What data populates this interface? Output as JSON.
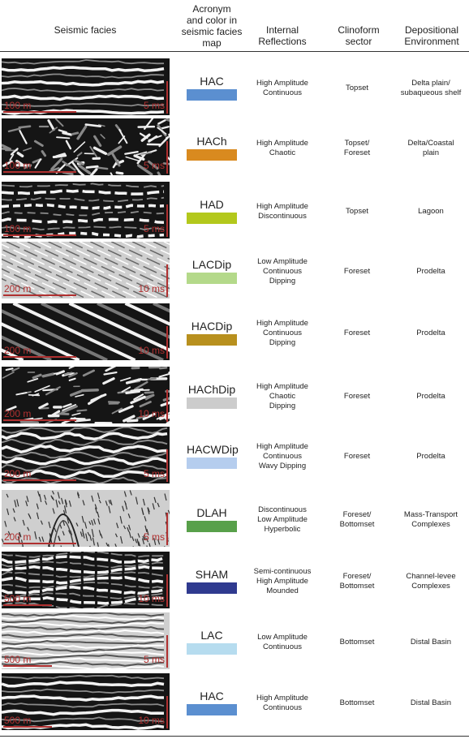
{
  "headers": {
    "facies": "Seismic facies",
    "acronym": [
      "Acronym",
      "and color in",
      "seismic facies",
      "map"
    ],
    "internal": [
      "Internal",
      "Reflections"
    ],
    "sector": [
      "Clinoform",
      "sector"
    ],
    "environment": [
      "Depositional",
      "Environment"
    ]
  },
  "rows": [
    {
      "acronym": "HAC",
      "color": "#5b8fd0",
      "internal": [
        "High Amplitude",
        "Continuous"
      ],
      "sector": [
        "Topset"
      ],
      "environment": [
        "Delta plain/",
        "subaqueous shelf"
      ],
      "scale_h": "100 m",
      "scale_v": "5 ms",
      "texture": "continuous"
    },
    {
      "acronym": "HACh",
      "color": "#d98a1f",
      "internal": [
        "High Amplitude",
        "Chaotic"
      ],
      "sector": [
        "Topset/",
        "Foreset"
      ],
      "environment": [
        "Delta/Coastal",
        "plain"
      ],
      "scale_h": "100 m",
      "scale_v": "5 ms",
      "texture": "chaotic"
    },
    {
      "acronym": "HAD",
      "color": "#b3c81c",
      "internal": [
        "High Amplitude",
        "Discontinuous"
      ],
      "sector": [
        "Topset"
      ],
      "environment": [
        "Lagoon"
      ],
      "scale_h": "100 m",
      "scale_v": "5 ms",
      "texture": "discontinuous"
    },
    {
      "acronym": "LACDip",
      "color": "#b4d98a",
      "internal": [
        "Low Amplitude",
        "Continuous",
        "Dipping"
      ],
      "sector": [
        "Foreset"
      ],
      "environment": [
        "Prodelta"
      ],
      "scale_h": "200 m",
      "scale_v": "10 ms",
      "texture": "lowdip"
    },
    {
      "acronym": "HACDip",
      "color": "#b8901e",
      "internal": [
        "High Amplitude",
        "Continuous",
        "Dipping"
      ],
      "sector": [
        "Foreset"
      ],
      "environment": [
        "Prodelta"
      ],
      "scale_h": "200 m",
      "scale_v": "10 ms",
      "texture": "dip"
    },
    {
      "acronym": "HAChDip",
      "color": "#cccccc",
      "internal": [
        "High Amplitude",
        "Chaotic",
        "Dipping"
      ],
      "sector": [
        "Foreset"
      ],
      "environment": [
        "Prodelta"
      ],
      "scale_h": "200 m",
      "scale_v": "10 ms",
      "texture": "chaoticdip"
    },
    {
      "acronym": "HACWDip",
      "color": "#b5cdee",
      "internal": [
        "High Amplitude",
        "Continuous",
        "Wavy Dipping"
      ],
      "sector": [
        "Foreset"
      ],
      "environment": [
        "Prodelta"
      ],
      "scale_h": "200 m",
      "scale_v": "5 ms",
      "texture": "wavy"
    },
    {
      "acronym": "DLAH",
      "color": "#58a04a",
      "internal": [
        "Discontinuous",
        "Low Amplitude",
        "Hyperbolic"
      ],
      "sector": [
        "Foreset/",
        "Bottomset"
      ],
      "environment": [
        "Mass-Transport",
        "Complexes"
      ],
      "scale_h": "200 m",
      "scale_v": "5 ms",
      "texture": "hyperbolic"
    },
    {
      "acronym": "SHAM",
      "color": "#2f3a8f",
      "internal": [
        "Semi-continuous",
        "High Amplitude",
        "Mounded"
      ],
      "sector": [
        "Foreset/",
        "Bottomset"
      ],
      "environment": [
        "Channel-levee",
        "Complexes"
      ],
      "scale_h": "500 m",
      "scale_v": "10 ms",
      "texture": "mounded"
    },
    {
      "acronym": "LAC",
      "color": "#b6dcef",
      "internal": [
        "Low Amplitude",
        "Continuous"
      ],
      "sector": [
        "Bottomset"
      ],
      "environment": [
        "Distal Basin"
      ],
      "scale_h": "500 m",
      "scale_v": "5 ms",
      "texture": "lowcont"
    },
    {
      "acronym": "HAC",
      "color": "#5b8fd0",
      "internal": [
        "High Amplitude",
        "Continuous"
      ],
      "sector": [
        "Bottomset"
      ],
      "environment": [
        "Distal Basin"
      ],
      "scale_h": "500 m",
      "scale_v": "10 ms",
      "texture": "continuous2"
    }
  ]
}
